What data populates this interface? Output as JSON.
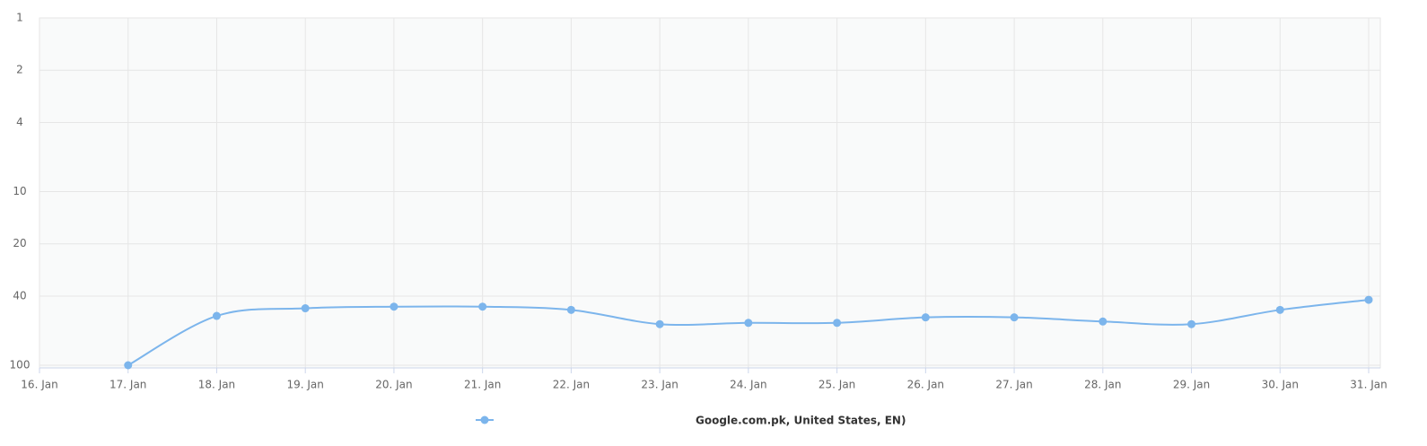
{
  "chart_data": {
    "type": "line",
    "categories": [
      "16. Jan",
      "17. Jan",
      "18. Jan",
      "19. Jan",
      "20. Jan",
      "21. Jan",
      "22. Jan",
      "23. Jan",
      "24. Jan",
      "25. Jan",
      "26. Jan",
      "27. Jan",
      "28. Jan",
      "29. Jan",
      "30. Jan",
      "31. Jan"
    ],
    "series": [
      {
        "name": "Google.com.pk, United States, EN)",
        "color": "#7cb5ec",
        "values": [
          null,
          100,
          52,
          47,
          46,
          46,
          48,
          58,
          57,
          57,
          53,
          53,
          56,
          58,
          48,
          42
        ]
      }
    ],
    "ylim": [
      1,
      100
    ],
    "yticks": [
      1,
      2,
      4,
      10,
      20,
      40,
      100
    ],
    "yscale": "log",
    "yreversed": true,
    "grid": true
  }
}
